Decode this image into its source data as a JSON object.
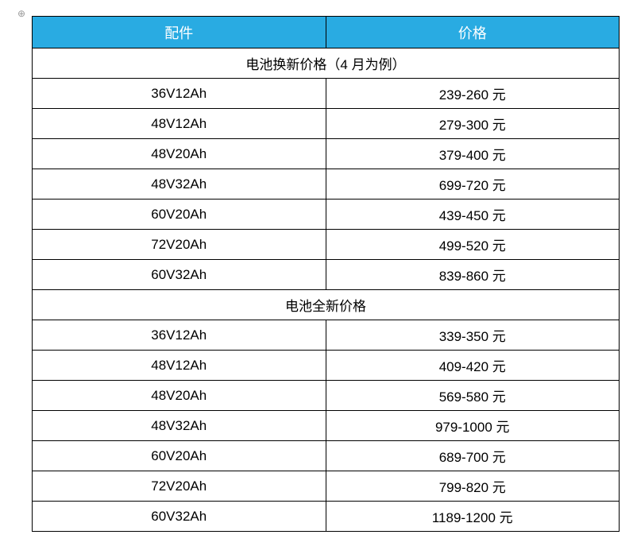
{
  "table": {
    "header_bg": "#29abe2",
    "header_color": "#ffffff",
    "border_color": "#000000",
    "columns": [
      {
        "label": "配件"
      },
      {
        "label": "价格"
      }
    ],
    "section1": {
      "title": "电池换新价格（4 月为例）",
      "rows": [
        {
          "spec": "36V12Ah",
          "price": "239-260 元"
        },
        {
          "spec": "48V12Ah",
          "price": "279-300 元"
        },
        {
          "spec": "48V20Ah",
          "price": "379-400 元"
        },
        {
          "spec": "48V32Ah",
          "price": "699-720 元"
        },
        {
          "spec": "60V20Ah",
          "price": "439-450 元"
        },
        {
          "spec": "72V20Ah",
          "price": "499-520 元"
        },
        {
          "spec": "60V32Ah",
          "price": "839-860 元"
        }
      ]
    },
    "section2": {
      "title": "电池全新价格",
      "rows": [
        {
          "spec": "36V12Ah",
          "price": "339-350 元"
        },
        {
          "spec": "48V12Ah",
          "price": "409-420 元"
        },
        {
          "spec": "48V20Ah",
          "price": "569-580 元"
        },
        {
          "spec": "48V32Ah",
          "price": "979-1000 元"
        },
        {
          "spec": "60V20Ah",
          "price": "689-700 元"
        },
        {
          "spec": "72V20Ah",
          "price": "799-820 元"
        },
        {
          "spec": "60V32Ah",
          "price": "1189-1200 元"
        }
      ]
    }
  },
  "anchor_symbol": "⊕"
}
